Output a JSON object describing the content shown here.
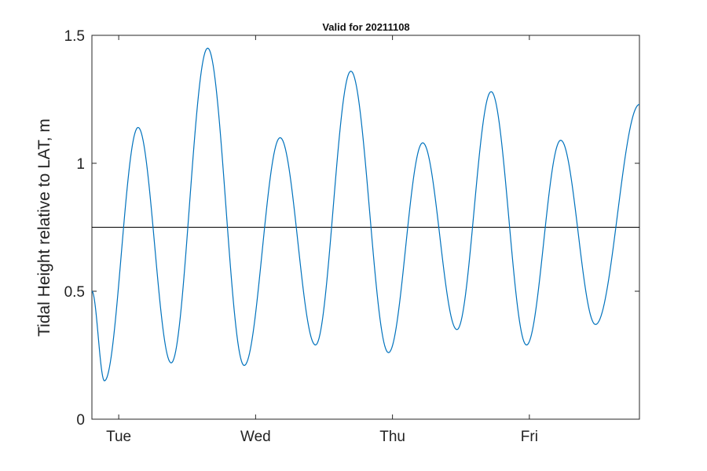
{
  "chart_data": {
    "type": "line",
    "title": "Valid for 20211108",
    "xlabel": "",
    "ylabel": "Tidal Height relative to LAT, m",
    "x_unit": "hours",
    "xlim": [
      0,
      96
    ],
    "ylim": [
      0,
      1.5
    ],
    "y_ticks": [
      {
        "value": 0,
        "label": "0"
      },
      {
        "value": 0.5,
        "label": "0.5"
      },
      {
        "value": 1,
        "label": "1"
      },
      {
        "value": 1.5,
        "label": "1.5"
      }
    ],
    "x_ticks": [
      {
        "value": 4.7,
        "label": "Tue"
      },
      {
        "value": 28.7,
        "label": "Wed"
      },
      {
        "value": 52.7,
        "label": "Thu"
      },
      {
        "value": 76.7,
        "label": "Fri"
      }
    ],
    "grid": false,
    "reference_line": {
      "y": 0.75,
      "color": "#000000"
    },
    "series": [
      {
        "color": "#0072BD",
        "extrema": [
          {
            "x": 0.0,
            "y": 0.5
          },
          {
            "x": 2.2,
            "y": 0.15
          },
          {
            "x": 8.1,
            "y": 1.14
          },
          {
            "x": 13.9,
            "y": 0.22
          },
          {
            "x": 20.3,
            "y": 1.45
          },
          {
            "x": 26.7,
            "y": 0.21
          },
          {
            "x": 33.0,
            "y": 1.1
          },
          {
            "x": 39.2,
            "y": 0.29
          },
          {
            "x": 45.4,
            "y": 1.36
          },
          {
            "x": 52.0,
            "y": 0.26
          },
          {
            "x": 58.0,
            "y": 1.08
          },
          {
            "x": 64.0,
            "y": 0.35
          },
          {
            "x": 70.0,
            "y": 1.28
          },
          {
            "x": 76.2,
            "y": 0.29
          },
          {
            "x": 82.2,
            "y": 1.09
          },
          {
            "x": 88.3,
            "y": 0.37
          },
          {
            "x": 96.0,
            "y": 1.23
          }
        ]
      }
    ]
  }
}
